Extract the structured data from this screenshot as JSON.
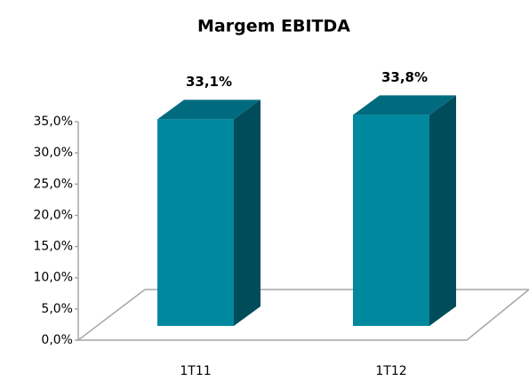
{
  "chart_data": {
    "type": "bar3d",
    "title": "Margem EBITDA",
    "categories": [
      "1T11",
      "1T12"
    ],
    "values": [
      33.1,
      33.8
    ],
    "value_labels": [
      "33,1%",
      "33,8%"
    ],
    "colors": {
      "front": "#00899e",
      "top": "#006b7e",
      "side": "#004c5b"
    },
    "ylim": [
      0,
      35
    ],
    "yticks": [
      {
        "value": 0,
        "label": "0,0%"
      },
      {
        "value": 5,
        "label": "5,0%"
      },
      {
        "value": 10,
        "label": "10,0%"
      },
      {
        "value": 15,
        "label": "15,0%"
      },
      {
        "value": 20,
        "label": "20,0%"
      },
      {
        "value": 25,
        "label": "25,0%"
      },
      {
        "value": 30,
        "label": "30,0%"
      },
      {
        "value": 35,
        "label": "35,0%"
      }
    ],
    "grid": false
  }
}
